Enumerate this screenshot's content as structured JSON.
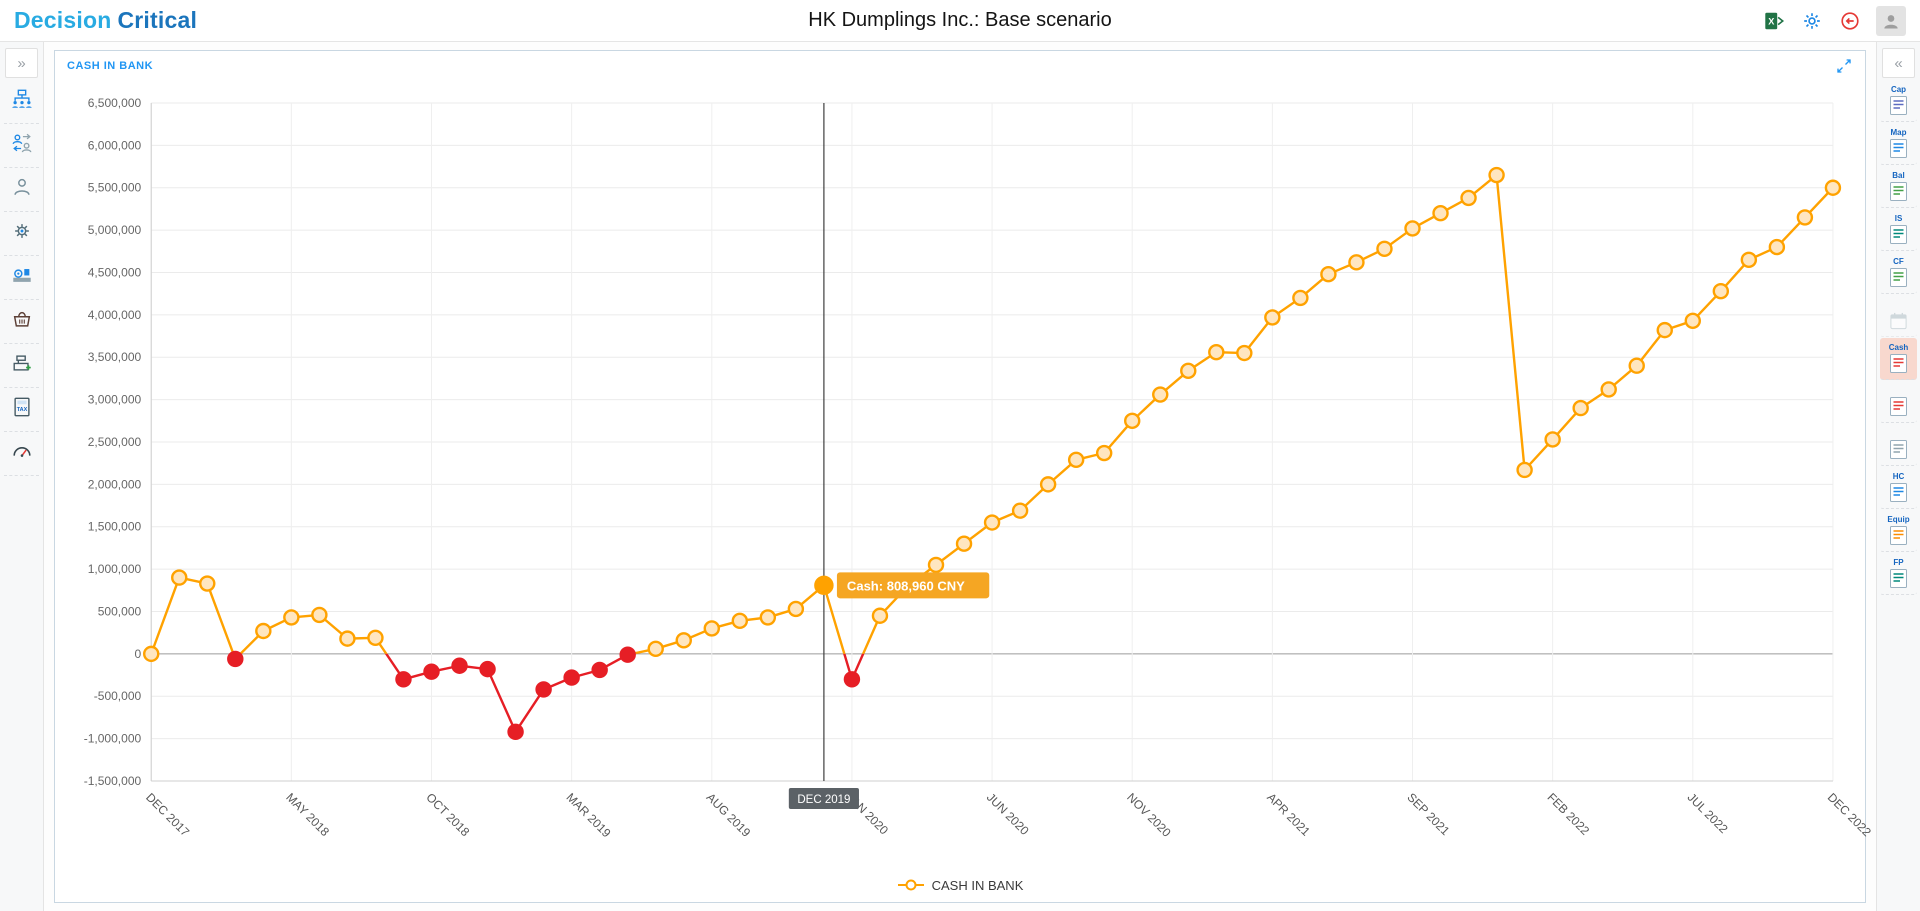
{
  "app": {
    "logo_primary": "Decision",
    "logo_secondary": "Critical",
    "title": "HK Dumplings Inc.: Base scenario"
  },
  "header_icons": [
    "export-excel",
    "settings-gear",
    "logout",
    "user-avatar"
  ],
  "colors": {
    "accent_blue": "#2196f3",
    "logo_light_blue": "#29abe2",
    "logo_dark_blue": "#1b75bc",
    "line_orange": "#ffa200",
    "marker_fill": "#ffe6c0",
    "negative_red": "#e61e25",
    "tooltip_orange": "#f5a623",
    "axis_tooltip_gray": "#5b6166"
  },
  "left_sidebar": {
    "collapse_glyph": "»",
    "items": [
      "company-structure",
      "staff-transfer",
      "personnel",
      "services",
      "production",
      "sales-basket",
      "cash-register",
      "taxes",
      "indicators"
    ]
  },
  "right_sidebar": {
    "collapse_glyph": "«",
    "items": [
      {
        "label": "Cap",
        "icon": "capital-report"
      },
      {
        "label": "Map",
        "icon": "map-report"
      },
      {
        "label": "Bal",
        "icon": "balance-report"
      },
      {
        "label": "IS",
        "icon": "income-statement-report"
      },
      {
        "label": "CF",
        "icon": "cash-flow-report"
      },
      {
        "label": "",
        "icon": "calendar-report"
      },
      {
        "label": "Cash",
        "icon": "cash-report",
        "active": true
      },
      {
        "label": "",
        "icon": "report-doc-1"
      },
      {
        "label": "",
        "icon": "report-doc-2"
      },
      {
        "label": "HC",
        "icon": "headcount-report"
      },
      {
        "label": "Equip",
        "icon": "equipment-report"
      },
      {
        "label": "FP",
        "icon": "fp-report"
      }
    ]
  },
  "panel": {
    "title": "CASH IN BANK"
  },
  "legend": {
    "label": "CASH IN BANK"
  },
  "tooltip": {
    "label": "Cash: 808,960 CNY",
    "axis_label": "DEC 2019"
  },
  "chart_data": {
    "type": "line",
    "series_name": "CASH IN BANK",
    "unit": "CNY",
    "ylim": [
      -1500000,
      6500000
    ],
    "ytick_step": 500000,
    "visible_tick_every": 5,
    "grid": true,
    "legend_position": "bottom",
    "positive_color": "#ffa200",
    "negative_color": "#e61e25",
    "selected_index": 24,
    "selected_value": 808960,
    "selected_label": "DEC 2019",
    "x_labels": [
      "DEC 2017",
      "JAN 2018",
      "FEB 2018",
      "MAR 2018",
      "APR 2018",
      "MAY 2018",
      "JUN 2018",
      "JUL 2018",
      "AUG 2018",
      "SEP 2018",
      "OCT 2018",
      "NOV 2018",
      "DEC 2018",
      "JAN 2019",
      "FEB 2019",
      "MAR 2019",
      "APR 2019",
      "MAY 2019",
      "JUN 2019",
      "JUL 2019",
      "AUG 2019",
      "SEP 2019",
      "OCT 2019",
      "NOV 2019",
      "DEC 2019",
      "JAN 2020",
      "FEB 2020",
      "MAR 2020",
      "APR 2020",
      "MAY 2020",
      "JUN 2020",
      "JUL 2020",
      "AUG 2020",
      "SEP 2020",
      "OCT 2020",
      "NOV 2020",
      "DEC 2020",
      "JAN 2021",
      "FEB 2021",
      "MAR 2021",
      "APR 2021",
      "MAY 2021",
      "JUN 2021",
      "JUL 2021",
      "AUG 2021",
      "SEP 2021",
      "OCT 2021",
      "NOV 2021",
      "DEC 2021",
      "JAN 2022",
      "FEB 2022",
      "MAR 2022",
      "APR 2022",
      "MAY 2022",
      "JUN 2022",
      "JUL 2022",
      "AUG 2022",
      "SEP 2022",
      "OCT 2022",
      "NOV 2022",
      "DEC 2022"
    ],
    "values": [
      0,
      900000,
      830000,
      -60000,
      270000,
      430000,
      460000,
      180000,
      190000,
      -300000,
      -210000,
      -140000,
      -180000,
      -920000,
      -420000,
      -280000,
      -190000,
      -10000,
      60000,
      160000,
      300000,
      390000,
      430000,
      530000,
      808960,
      -300000,
      450000,
      800000,
      1050000,
      1300000,
      1550000,
      1690000,
      2000000,
      2290000,
      2370000,
      2750000,
      3060000,
      3340000,
      3560000,
      3550000,
      3970000,
      4200000,
      4480000,
      4620000,
      4780000,
      5020000,
      5200000,
      5380000,
      5650000,
      2170000,
      2530000,
      2900000,
      3120000,
      3400000,
      3820000,
      3930000,
      4280000,
      4650000,
      4800000,
      5150000,
      5500000
    ]
  }
}
